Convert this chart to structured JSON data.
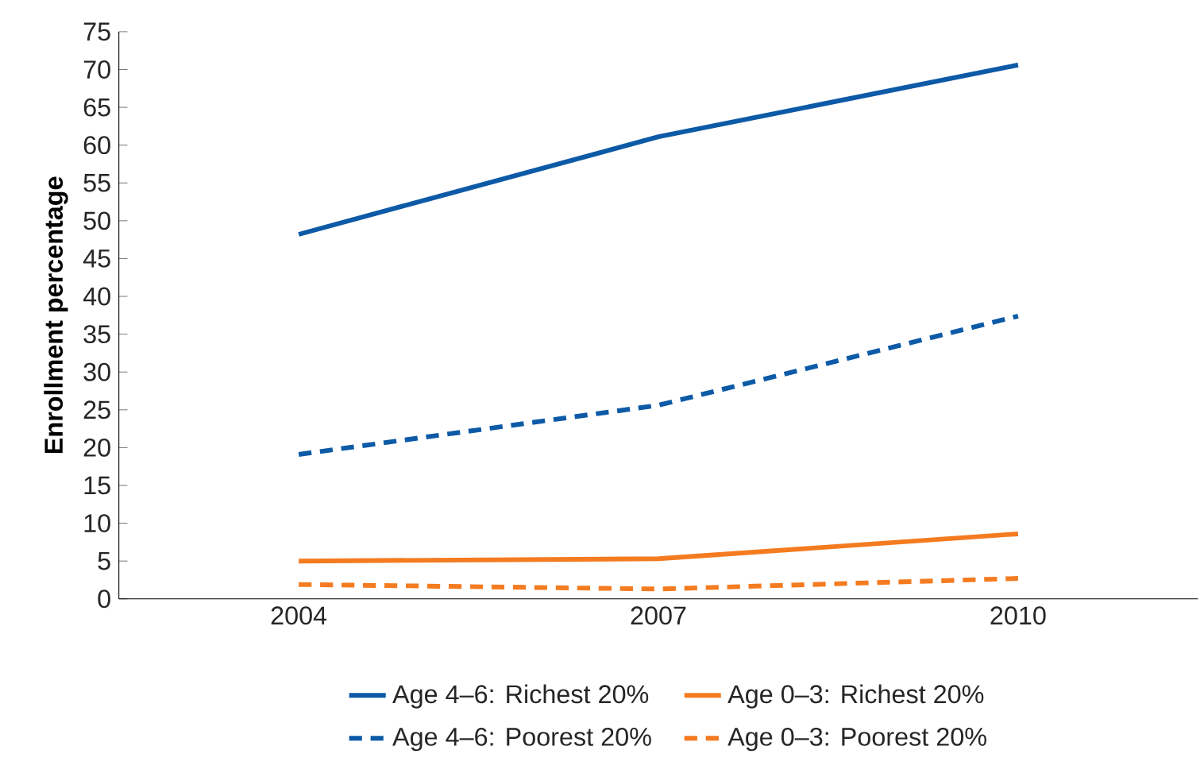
{
  "chart_data": {
    "type": "line",
    "ylabel": "Enrollment percentage",
    "categories": [
      "2004",
      "2007",
      "2010"
    ],
    "series": [
      {
        "name": "Age 4–6: Richest 20%",
        "color": "#0d5aa7",
        "values": [
          48.2,
          61.1,
          70.6
        ],
        "line_style": "solid"
      },
      {
        "name": "Age 0–3: Richest 20%",
        "color": "#f47b20",
        "values": [
          5.0,
          5.3,
          8.6
        ],
        "line_style": "solid"
      },
      {
        "name": "Age 4–6: Poorest 20%",
        "color": "#0d5aa7",
        "values": [
          19.1,
          25.6,
          37.4
        ],
        "line_style": "dashed"
      },
      {
        "name": "Age 0–3: Poorest 20%",
        "color": "#f47b20",
        "values": [
          1.9,
          1.3,
          2.7
        ],
        "line_style": "dashed"
      }
    ],
    "ylim": [
      0,
      75
    ],
    "yticks": [
      0,
      5,
      10,
      15,
      20,
      25,
      30,
      35,
      40,
      45,
      50,
      55,
      60,
      65,
      70,
      75
    ],
    "grid": false,
    "legend": "bottom",
    "marker": "none"
  }
}
